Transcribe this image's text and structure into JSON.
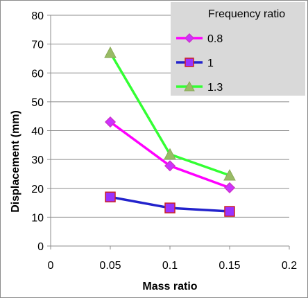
{
  "chart_data": {
    "type": "line",
    "xlabel": "Mass ratio",
    "ylabel": "Displacement (mm)",
    "xlim": [
      0,
      0.2
    ],
    "ylim": [
      0,
      80
    ],
    "x_ticks": [
      "0",
      "0.05",
      "0.1",
      "0.15",
      "0.2"
    ],
    "y_ticks": [
      "0",
      "10",
      "20",
      "30",
      "40",
      "50",
      "60",
      "70",
      "80"
    ],
    "grid": "horizontal",
    "legend_title": "Frequency ratio",
    "legend_position": "top-right",
    "x": [
      0.05,
      0.1,
      0.15
    ],
    "series": [
      {
        "name": "0.8",
        "values": [
          43,
          27.8,
          20.2
        ],
        "color": "#ff00ff",
        "marker": "diamond",
        "marker_fill": "#cc33ff"
      },
      {
        "name": "1",
        "values": [
          17,
          13.2,
          12
        ],
        "color": "#2222cc",
        "marker": "square",
        "marker_fill": "#9933ff"
      },
      {
        "name": "1.3",
        "values": [
          67,
          31.8,
          24.5
        ],
        "color": "#33ff33",
        "marker": "triangle",
        "marker_fill": "#99bb66"
      }
    ]
  }
}
